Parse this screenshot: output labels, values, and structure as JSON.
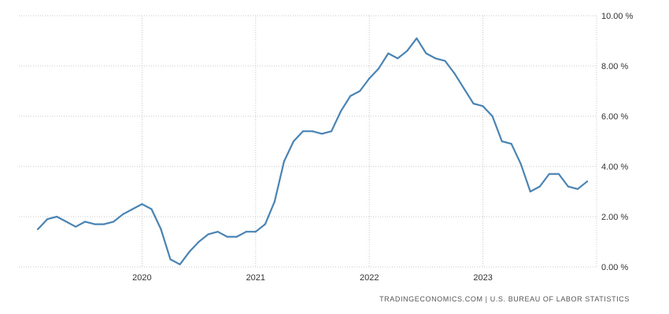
{
  "source": "TRADINGECONOMICS.COM | U.S. BUREAU OF LABOR STATISTICS",
  "colors": {
    "line": "#4a84b4",
    "grid": "#c8c8c8",
    "axis_text": "#333333"
  },
  "chart_data": {
    "type": "line",
    "title": "",
    "xlabel": "",
    "ylabel": "",
    "ylim": [
      0,
      10
    ],
    "grid": true,
    "y_ticks": [
      {
        "value": 0,
        "label": "0.00 %"
      },
      {
        "value": 2,
        "label": "2.00 %"
      },
      {
        "value": 4,
        "label": "4.00 %"
      },
      {
        "value": 6,
        "label": "6.00 %"
      },
      {
        "value": 8,
        "label": "8.00 %"
      },
      {
        "value": 10,
        "label": "10.00 %"
      }
    ],
    "x_ticks": [
      {
        "value": "2020-01",
        "label": "2020"
      },
      {
        "value": "2021-01",
        "label": "2021"
      },
      {
        "value": "2022-01",
        "label": "2022"
      },
      {
        "value": "2023-01",
        "label": "2023"
      }
    ],
    "series": [
      {
        "x": [
          "2019-02",
          "2019-03",
          "2019-04",
          "2019-05",
          "2019-06",
          "2019-07",
          "2019-08",
          "2019-09",
          "2019-10",
          "2019-11",
          "2019-12",
          "2020-01",
          "2020-02",
          "2020-03",
          "2020-04",
          "2020-05",
          "2020-06",
          "2020-07",
          "2020-08",
          "2020-09",
          "2020-10",
          "2020-11",
          "2020-12",
          "2021-01",
          "2021-02",
          "2021-03",
          "2021-04",
          "2021-05",
          "2021-06",
          "2021-07",
          "2021-08",
          "2021-09",
          "2021-10",
          "2021-11",
          "2021-12",
          "2022-01",
          "2022-02",
          "2022-03",
          "2022-04",
          "2022-05",
          "2022-06",
          "2022-07",
          "2022-08",
          "2022-09",
          "2022-10",
          "2022-11",
          "2022-12",
          "2023-01",
          "2023-02",
          "2023-03",
          "2023-04",
          "2023-05",
          "2023-06",
          "2023-07",
          "2023-08",
          "2023-09",
          "2023-10",
          "2023-11",
          "2023-12"
        ],
        "values": [
          1.5,
          1.9,
          2.0,
          1.8,
          1.6,
          1.8,
          1.7,
          1.7,
          1.8,
          2.1,
          2.3,
          2.5,
          2.3,
          1.5,
          0.3,
          0.1,
          0.6,
          1.0,
          1.3,
          1.4,
          1.2,
          1.2,
          1.4,
          1.4,
          1.7,
          2.6,
          4.2,
          5.0,
          5.4,
          5.4,
          5.3,
          5.4,
          6.2,
          6.8,
          7.0,
          7.5,
          7.9,
          8.5,
          8.3,
          8.6,
          9.1,
          8.5,
          8.3,
          8.2,
          7.7,
          7.1,
          6.5,
          6.4,
          6.0,
          5.0,
          4.9,
          4.1,
          3.0,
          3.2,
          3.7,
          3.7,
          3.2,
          3.1,
          3.4
        ]
      }
    ]
  }
}
